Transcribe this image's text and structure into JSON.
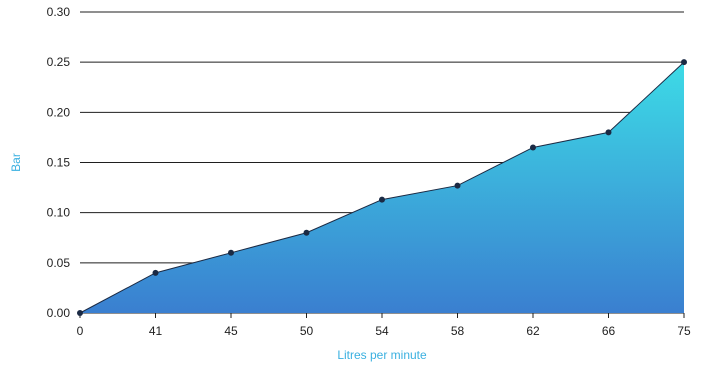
{
  "chart_data": {
    "type": "area",
    "title": "",
    "xlabel": "Litres per minute",
    "ylabel": "Bar",
    "categories": [
      "0",
      "41",
      "45",
      "50",
      "54",
      "58",
      "62",
      "66",
      "75"
    ],
    "values": [
      0.0,
      0.04,
      0.06,
      0.08,
      0.113,
      0.127,
      0.165,
      0.18,
      0.25
    ],
    "ylim": [
      0,
      0.3
    ],
    "yticks": [
      "0.00",
      "0.05",
      "0.10",
      "0.15",
      "0.20",
      "0.25",
      "0.30"
    ],
    "grid": "horizontal",
    "legend": "none",
    "colors": {
      "fill_top": "#3ddbe6",
      "fill_bottom": "#3a7fd0",
      "line": "#1b2a44",
      "marker": "#1b2a44",
      "gridline": "#1f1f1f",
      "axis_title": "#3ab0e0"
    }
  }
}
